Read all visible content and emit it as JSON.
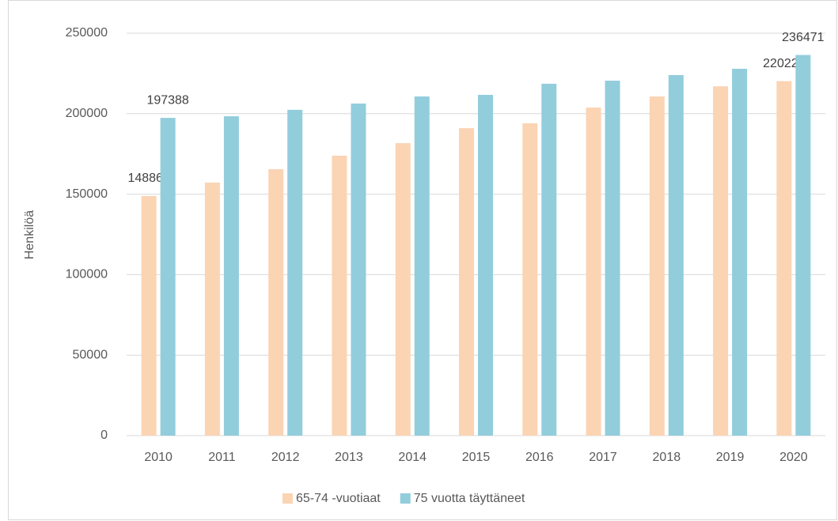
{
  "chart_data": {
    "type": "bar",
    "y_label": "Henkilöä",
    "categories": [
      "2010",
      "2011",
      "2012",
      "2013",
      "2014",
      "2015",
      "2016",
      "2017",
      "2018",
      "2019",
      "2020"
    ],
    "series": [
      {
        "name": "65-74 -vuotiaat",
        "color": "#fbd4b4",
        "values": [
          148863,
          157200,
          165500,
          173900,
          181700,
          191000,
          194000,
          203800,
          210700,
          217000,
          220223
        ],
        "value_labels": [
          "148863",
          null,
          null,
          null,
          null,
          null,
          null,
          null,
          null,
          null,
          "220223"
        ]
      },
      {
        "name": "75 vuotta täyttäneet",
        "color": "#92cddc",
        "values": [
          197388,
          198400,
          202400,
          206300,
          210700,
          211700,
          218600,
          220500,
          224000,
          227900,
          236471
        ],
        "value_labels": [
          "197388",
          null,
          null,
          null,
          null,
          null,
          null,
          null,
          null,
          null,
          "236471"
        ]
      }
    ],
    "ylim": [
      0,
      250000
    ],
    "yticks": [
      0,
      50000,
      100000,
      150000,
      200000,
      250000
    ],
    "grid": true,
    "legend": "bottom"
  }
}
